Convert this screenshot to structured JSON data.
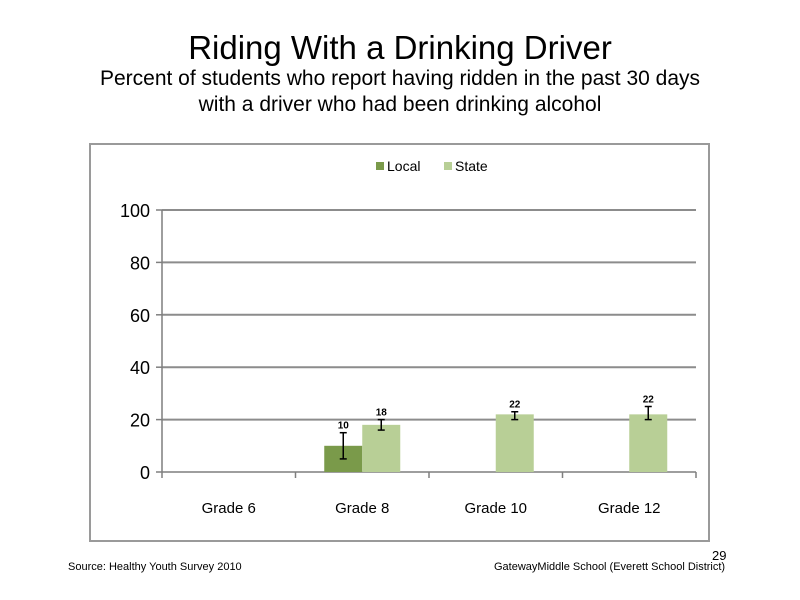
{
  "slide": {
    "title": "Riding  With a Drinking Driver",
    "subtitle_line1": "Percent of students who report having ridden in the past 30 days",
    "subtitle_line2": "with a driver who had been drinking alcohol",
    "source": "Source: Healthy Youth Survey 2010",
    "school": "GatewayMiddle  School (Everett School District)",
    "page_number": "29"
  },
  "colors": {
    "local": "#7a9a4a",
    "state": "#b8cf96",
    "gridline": "#8c8c8c",
    "axis": "#7f7f7f",
    "frame": "#9a9a9a"
  },
  "chart_data": {
    "type": "bar",
    "categories": [
      "Grade 6",
      "Grade 8",
      "Grade 10",
      "Grade 12"
    ],
    "series": [
      {
        "name": "Local",
        "values": [
          null,
          10,
          null,
          null
        ],
        "error_low": [
          null,
          5,
          null,
          null
        ],
        "error_high": [
          null,
          15,
          null,
          null
        ],
        "labels": [
          "",
          "10",
          "",
          ""
        ]
      },
      {
        "name": "State",
        "values": [
          null,
          18,
          22,
          22
        ],
        "error_low": [
          null,
          16,
          20,
          20
        ],
        "error_high": [
          null,
          20,
          23,
          25
        ],
        "labels": [
          "",
          "18",
          "22",
          "22"
        ]
      }
    ],
    "ylim": [
      0,
      100
    ],
    "yticks": [
      "0",
      "20",
      "40",
      "60",
      "80",
      "100"
    ],
    "grid": true,
    "legend": "top-center"
  }
}
